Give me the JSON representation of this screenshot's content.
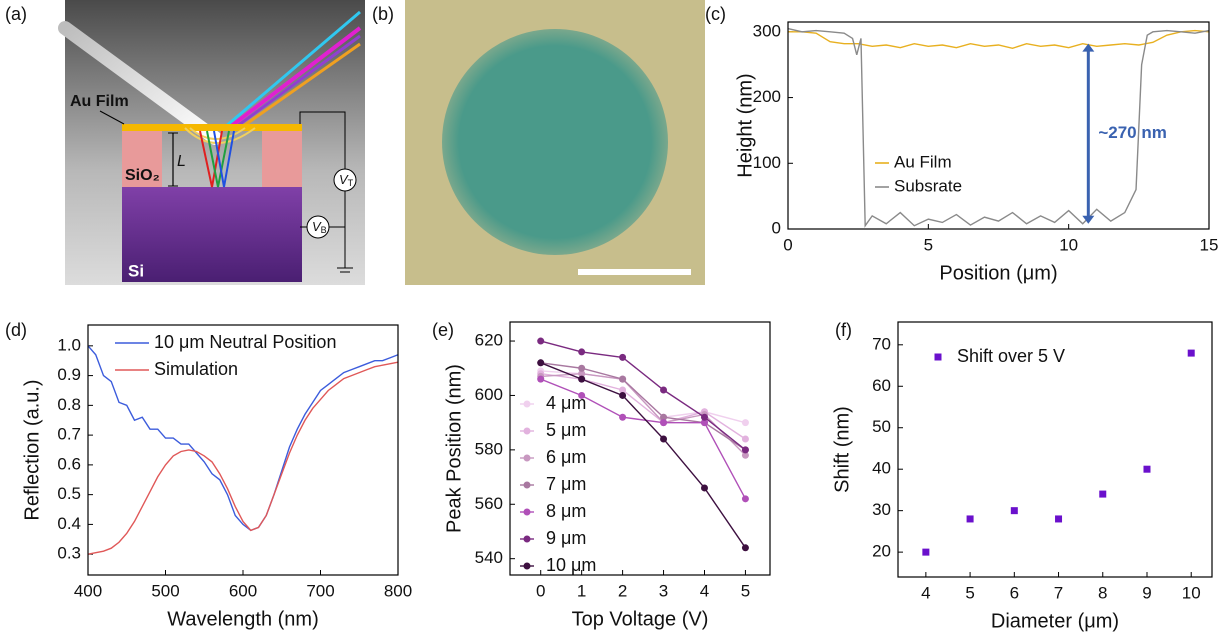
{
  "panel_a": {
    "label": "(a)",
    "au_film": "Au Film",
    "sio2": "SiO₂",
    "length": "L",
    "top_voltage": {
      "symbol": "V",
      "subscript": "T"
    },
    "bottom_voltage": {
      "symbol": "V",
      "subscript": "B"
    },
    "si": "Si"
  },
  "panel_b": {
    "label": "(b)"
  },
  "chart_data": [
    {
      "type": "line",
      "panel_label": "(c)",
      "x_label": "Position (μm)",
      "y_label": "Height (nm)",
      "xlim": [
        0,
        15
      ],
      "xticks": [
        0,
        5,
        10,
        15
      ],
      "ylim": [
        0,
        315
      ],
      "yticks": [
        0,
        100,
        200,
        300
      ],
      "legend": "center-left",
      "series": [
        {
          "name": "Au Film",
          "color": "#e8b020",
          "x": [
            0,
            0.5,
            1,
            1.5,
            2,
            2.5,
            3,
            3.5,
            4,
            4.5,
            5,
            5.5,
            6,
            6.5,
            7,
            7.5,
            8,
            8.5,
            9,
            9.5,
            10,
            10.5,
            11,
            11.5,
            12,
            12.5,
            13,
            13.5,
            14,
            14.5,
            15
          ],
          "values": [
            300,
            300,
            298,
            285,
            282,
            282,
            278,
            280,
            276,
            282,
            278,
            280,
            276,
            282,
            278,
            280,
            275,
            282,
            278,
            280,
            276,
            282,
            278,
            280,
            282,
            280,
            284,
            295,
            300,
            302,
            300
          ]
        },
        {
          "name": "Subsrate",
          "color": "#8a8a8a",
          "x": [
            0,
            0.5,
            1,
            1.5,
            2,
            2.3,
            2.45,
            2.6,
            2.75,
            3,
            3.5,
            4,
            4.5,
            5,
            5.5,
            6,
            6.5,
            7,
            7.5,
            8,
            8.5,
            9,
            9.5,
            10,
            10.5,
            11,
            11.5,
            12,
            12.4,
            12.6,
            12.8,
            13,
            13.5,
            14,
            14.5,
            15
          ],
          "values": [
            305,
            300,
            302,
            300,
            298,
            290,
            265,
            290,
            5,
            20,
            8,
            25,
            5,
            15,
            10,
            22,
            6,
            18,
            12,
            25,
            8,
            20,
            10,
            28,
            8,
            30,
            12,
            25,
            60,
            250,
            295,
            300,
            302,
            300,
            298,
            302
          ]
        }
      ],
      "annotation": {
        "text": "~270 nm",
        "color": "#3a62b0",
        "x": 10.7,
        "y_from": 8,
        "y_to": 282
      }
    },
    {
      "type": "line",
      "panel_label": "(d)",
      "x_label": "Wavelength (nm)",
      "y_label": "Reflection (a.u.)",
      "xlim": [
        400,
        800
      ],
      "xticks": [
        400,
        500,
        600,
        700,
        800
      ],
      "ylim": [
        0.23,
        1.07
      ],
      "yticks": [
        0.3,
        0.4,
        0.5,
        0.6,
        0.7,
        0.8,
        0.9,
        {
          "value": 1,
          "label": "1.0"
        }
      ],
      "legend": "upper-left",
      "x": [
        400,
        410,
        420,
        430,
        440,
        450,
        460,
        470,
        480,
        490,
        500,
        510,
        520,
        530,
        540,
        550,
        560,
        570,
        580,
        590,
        600,
        610,
        620,
        630,
        640,
        650,
        660,
        670,
        680,
        690,
        700,
        710,
        720,
        730,
        740,
        750,
        760,
        770,
        780,
        790,
        800
      ],
      "series": [
        {
          "name": "10 μm Neutral Position",
          "color": "#3c5cdc",
          "values": [
            1.0,
            0.97,
            0.9,
            0.88,
            0.81,
            0.8,
            0.75,
            0.76,
            0.72,
            0.72,
            0.69,
            0.69,
            0.67,
            0.67,
            0.64,
            0.61,
            0.57,
            0.55,
            0.5,
            0.43,
            0.4,
            0.38,
            0.39,
            0.43,
            0.5,
            0.58,
            0.66,
            0.72,
            0.77,
            0.81,
            0.85,
            0.87,
            0.89,
            0.91,
            0.92,
            0.93,
            0.94,
            0.95,
            0.95,
            0.96,
            0.97
          ]
        },
        {
          "name": "Simulation",
          "color": "#e05858",
          "values": [
            0.3,
            0.305,
            0.31,
            0.32,
            0.34,
            0.37,
            0.41,
            0.46,
            0.51,
            0.56,
            0.6,
            0.63,
            0.645,
            0.65,
            0.645,
            0.63,
            0.61,
            0.57,
            0.52,
            0.46,
            0.41,
            0.38,
            0.39,
            0.43,
            0.5,
            0.57,
            0.64,
            0.7,
            0.75,
            0.79,
            0.82,
            0.85,
            0.87,
            0.89,
            0.9,
            0.91,
            0.92,
            0.93,
            0.935,
            0.94,
            0.945
          ]
        }
      ]
    },
    {
      "type": "line",
      "markers": true,
      "panel_label": "(e)",
      "x_label": "Top Voltage (V)",
      "y_label": "Peak Position (nm)",
      "xlim": [
        -0.75,
        5.6
      ],
      "xticks": [
        0,
        1,
        2,
        3,
        4,
        5
      ],
      "ylim": [
        534,
        627
      ],
      "yticks": [
        540,
        560,
        580,
        600,
        620
      ],
      "legend": "lower-left",
      "x": [
        0,
        1,
        2,
        3,
        4,
        5
      ],
      "series": [
        {
          "name": "4 μm",
          "color": "#f0d0ee",
          "values": [
            609,
            608,
            606,
            592,
            594,
            590
          ]
        },
        {
          "name": "5 μm",
          "color": "#e2b2de",
          "values": [
            608,
            606,
            602,
            590,
            594,
            584
          ]
        },
        {
          "name": "6 μm",
          "color": "#c898c0",
          "values": [
            607,
            608,
            606,
            590,
            593,
            578
          ]
        },
        {
          "name": "7 μm",
          "color": "#a878a0",
          "values": [
            612,
            610,
            606,
            592,
            590,
            580
          ]
        },
        {
          "name": "8 μm",
          "color": "#b050b8",
          "values": [
            606,
            600,
            592,
            590,
            590,
            562
          ]
        },
        {
          "name": "9 μm",
          "color": "#7a2a80",
          "values": [
            620,
            616,
            614,
            602,
            592,
            580
          ]
        },
        {
          "name": "10 μm",
          "color": "#3d1040",
          "values": [
            612,
            606,
            600,
            584,
            566,
            544
          ]
        }
      ]
    },
    {
      "type": "scatter",
      "panel_label": "(f)",
      "x_label": "Diameter (μm)",
      "y_label": "Shift (nm)",
      "xlim": [
        3.37,
        10.47
      ],
      "xticks": [
        4,
        5,
        6,
        7,
        8,
        9,
        10
      ],
      "ylim": [
        14,
        75.5
      ],
      "yticks": [
        20,
        30,
        40,
        50,
        60,
        70
      ],
      "legend": "upper-left",
      "series": [
        {
          "name": "Shift over 5 V",
          "color": "#6a10cc",
          "x": [
            4,
            5,
            6,
            7,
            8,
            9,
            10
          ],
          "values": [
            20,
            28,
            30,
            28,
            34,
            40,
            68
          ]
        }
      ]
    }
  ]
}
